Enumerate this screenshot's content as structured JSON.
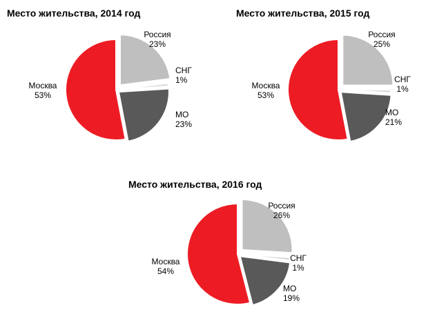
{
  "chart_data": [
    {
      "type": "pie",
      "title": "Место жительства, 2014 год",
      "slices": [
        {
          "name": "Россия",
          "value": 23,
          "label": "23%",
          "color": "#bfbfbf"
        },
        {
          "name": "СНГ",
          "value": 1,
          "label": "1%",
          "color": "#d9d9d9"
        },
        {
          "name": "МО",
          "value": 23,
          "label": "23%",
          "color": "#595959"
        },
        {
          "name": "Москва",
          "value": 53,
          "label": "53%",
          "color": "#ed1c24"
        }
      ]
    },
    {
      "type": "pie",
      "title": "Место жительства, 2015 год",
      "slices": [
        {
          "name": "Россия",
          "value": 25,
          "label": "25%",
          "color": "#bfbfbf"
        },
        {
          "name": "СНГ",
          "value": 1,
          "label": "1%",
          "color": "#d9d9d9"
        },
        {
          "name": "МО",
          "value": 21,
          "label": "21%",
          "color": "#595959"
        },
        {
          "name": "Москва",
          "value": 53,
          "label": "53%",
          "color": "#ed1c24"
        }
      ]
    },
    {
      "type": "pie",
      "title": "Место жительства, 2016 год",
      "slices": [
        {
          "name": "Россия",
          "value": 26,
          "label": "26%",
          "color": "#bfbfbf"
        },
        {
          "name": "СНГ",
          "value": 1,
          "label": "1%",
          "color": "#d9d9d9"
        },
        {
          "name": "МО",
          "value": 19,
          "label": "19%",
          "color": "#595959"
        },
        {
          "name": "Москва",
          "value": 54,
          "label": "54%",
          "color": "#ed1c24"
        }
      ]
    }
  ]
}
